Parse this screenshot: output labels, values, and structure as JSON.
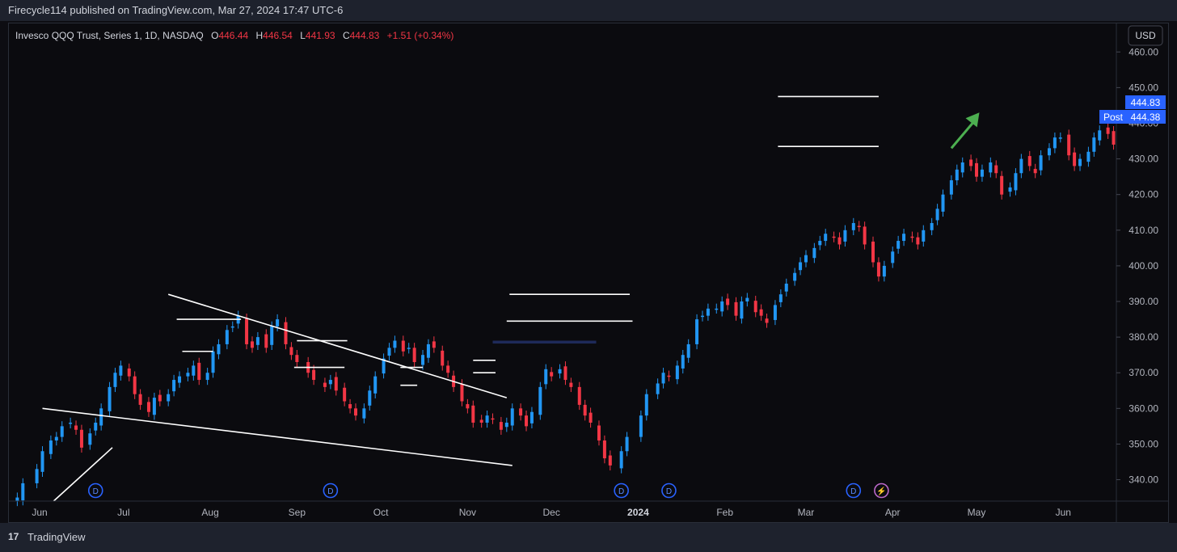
{
  "header": {
    "publish_line": "Firecycle114 published on TradingView.com, Mar 27, 2024 17:47 UTC-6"
  },
  "legend": {
    "symbol": "Invesco QQQ Trust, Series 1, 1D, NASDAQ",
    "o_label": "O",
    "o": "446.44",
    "h_label": "H",
    "h": "446.54",
    "l_label": "L",
    "l": "441.93",
    "c_label": "C",
    "c": "444.83",
    "change": "+1.51 (+0.34%)"
  },
  "currency": "USD",
  "price_tags": {
    "last": "444.83",
    "post_label": "Post",
    "post": "444.38"
  },
  "footer": {
    "logo_mark": "17",
    "brand": "TradingView"
  },
  "colors": {
    "up": "#2196f3",
    "down": "#f23645",
    "background": "#0b0b0f",
    "trendline": "#ffffff",
    "arrow": "#4caf50",
    "tag": "#2962ff"
  },
  "chart_data": {
    "type": "candlestick",
    "ylim": [
      334,
      468
    ],
    "y_ticks": [
      340,
      350,
      360,
      370,
      380,
      390,
      400,
      410,
      420,
      430,
      440,
      450,
      460
    ],
    "y_tick_labels": [
      "340.00",
      "350.00",
      "360.00",
      "370.00",
      "380.00",
      "390.00",
      "400.00",
      "410.00",
      "420.00",
      "430.00",
      "440.00",
      "450.00",
      "460.00"
    ],
    "x_range": [
      "2023-05-21",
      "2024-06-20"
    ],
    "x_ticks": [
      {
        "date": "2023-06-01",
        "label": "Jun",
        "bold": false
      },
      {
        "date": "2023-07-01",
        "label": "Jul",
        "bold": false
      },
      {
        "date": "2023-08-01",
        "label": "Aug",
        "bold": false
      },
      {
        "date": "2023-09-01",
        "label": "Sep",
        "bold": false
      },
      {
        "date": "2023-10-01",
        "label": "Oct",
        "bold": false
      },
      {
        "date": "2023-11-01",
        "label": "Nov",
        "bold": false
      },
      {
        "date": "2023-12-01",
        "label": "Dec",
        "bold": false
      },
      {
        "date": "2024-01-01",
        "label": "2024",
        "bold": true
      },
      {
        "date": "2024-02-01",
        "label": "Feb",
        "bold": false
      },
      {
        "date": "2024-03-01",
        "label": "Mar",
        "bold": false
      },
      {
        "date": "2024-04-01",
        "label": "Apr",
        "bold": false
      },
      {
        "date": "2024-05-01",
        "label": "May",
        "bold": false
      },
      {
        "date": "2024-06-01",
        "label": "Jun",
        "bold": false
      }
    ],
    "closes": [
      [
        "2023-05-24",
        335
      ],
      [
        "2023-05-26",
        339
      ],
      [
        "2023-05-31",
        343
      ],
      [
        "2023-06-02",
        348
      ],
      [
        "2023-06-05",
        351
      ],
      [
        "2023-06-07",
        352
      ],
      [
        "2023-06-09",
        355
      ],
      [
        "2023-06-12",
        356
      ],
      [
        "2023-06-14",
        354
      ],
      [
        "2023-06-16",
        349
      ],
      [
        "2023-06-19",
        353
      ],
      [
        "2023-06-21",
        356
      ],
      [
        "2023-06-23",
        360
      ],
      [
        "2023-06-26",
        366
      ],
      [
        "2023-06-28",
        370
      ],
      [
        "2023-06-30",
        372
      ],
      [
        "2023-07-03",
        369
      ],
      [
        "2023-07-05",
        364
      ],
      [
        "2023-07-07",
        361
      ],
      [
        "2023-07-10",
        359
      ],
      [
        "2023-07-12",
        363
      ],
      [
        "2023-07-14",
        362
      ],
      [
        "2023-07-17",
        364
      ],
      [
        "2023-07-19",
        368
      ],
      [
        "2023-07-21",
        369
      ],
      [
        "2023-07-24",
        370
      ],
      [
        "2023-07-26",
        372
      ],
      [
        "2023-07-28",
        368
      ],
      [
        "2023-07-31",
        370
      ],
      [
        "2023-08-02",
        376
      ],
      [
        "2023-08-04",
        378
      ],
      [
        "2023-08-07",
        382
      ],
      [
        "2023-08-09",
        383
      ],
      [
        "2023-08-11",
        386
      ],
      [
        "2023-08-14",
        378
      ],
      [
        "2023-08-16",
        377
      ],
      [
        "2023-08-18",
        380
      ],
      [
        "2023-08-21",
        377
      ],
      [
        "2023-08-23",
        383
      ],
      [
        "2023-08-25",
        385
      ],
      [
        "2023-08-28",
        378
      ],
      [
        "2023-08-30",
        375
      ],
      [
        "2023-09-01",
        373
      ],
      [
        "2023-09-05",
        370
      ],
      [
        "2023-09-07",
        368
      ],
      [
        "2023-09-11",
        366
      ],
      [
        "2023-09-13",
        368
      ],
      [
        "2023-09-15",
        365
      ],
      [
        "2023-09-18",
        362
      ],
      [
        "2023-09-20",
        360
      ],
      [
        "2023-09-22",
        358
      ],
      [
        "2023-09-25",
        360
      ],
      [
        "2023-09-27",
        365
      ],
      [
        "2023-09-29",
        369
      ],
      [
        "2023-10-02",
        374
      ],
      [
        "2023-10-04",
        377
      ],
      [
        "2023-10-06",
        379
      ],
      [
        "2023-10-09",
        376
      ],
      [
        "2023-10-11",
        377
      ],
      [
        "2023-10-13",
        373
      ],
      [
        "2023-10-16",
        375
      ],
      [
        "2023-10-18",
        378
      ],
      [
        "2023-10-20",
        377
      ],
      [
        "2023-10-23",
        372
      ],
      [
        "2023-10-25",
        370
      ],
      [
        "2023-10-27",
        366
      ],
      [
        "2023-10-30",
        362
      ],
      [
        "2023-11-01",
        360
      ],
      [
        "2023-11-03",
        356
      ],
      [
        "2023-11-06",
        356
      ],
      [
        "2023-11-08",
        358
      ],
      [
        "2023-11-10",
        357
      ],
      [
        "2023-11-13",
        354
      ],
      [
        "2023-11-15",
        356
      ],
      [
        "2023-11-17",
        360
      ],
      [
        "2023-11-20",
        358
      ],
      [
        "2023-11-22",
        355
      ],
      [
        "2023-11-24",
        359
      ],
      [
        "2023-11-27",
        366
      ],
      [
        "2023-11-29",
        371
      ],
      [
        "2023-12-01",
        369
      ],
      [
        "2023-12-04",
        371
      ],
      [
        "2023-12-06",
        368
      ],
      [
        "2023-12-08",
        366
      ],
      [
        "2023-12-11",
        361
      ],
      [
        "2023-12-13",
        358
      ],
      [
        "2023-12-15",
        356
      ],
      [
        "2023-12-18",
        351
      ],
      [
        "2023-12-20",
        346
      ],
      [
        "2023-12-22",
        344
      ],
      [
        "2023-12-26",
        348
      ],
      [
        "2023-12-28",
        352
      ],
      [
        "2024-01-02",
        358
      ],
      [
        "2024-01-04",
        364
      ],
      [
        "2024-01-08",
        367
      ],
      [
        "2024-01-10",
        370
      ],
      [
        "2024-01-12",
        369
      ],
      [
        "2024-01-15",
        372
      ],
      [
        "2024-01-17",
        375
      ],
      [
        "2024-01-19",
        378
      ],
      [
        "2024-01-22",
        385
      ],
      [
        "2024-01-24",
        386
      ],
      [
        "2024-01-26",
        388
      ],
      [
        "2024-01-29",
        388
      ],
      [
        "2024-01-31",
        390
      ],
      [
        "2024-02-02",
        389
      ],
      [
        "2024-02-05",
        386
      ],
      [
        "2024-02-07",
        390
      ],
      [
        "2024-02-09",
        391
      ],
      [
        "2024-02-12",
        387
      ],
      [
        "2024-02-14",
        386
      ],
      [
        "2024-02-16",
        384
      ],
      [
        "2024-02-19",
        389
      ],
      [
        "2024-02-21",
        392
      ],
      [
        "2024-02-23",
        395
      ],
      [
        "2024-02-26",
        398
      ],
      [
        "2024-02-28",
        401
      ],
      [
        "2024-03-01",
        403
      ],
      [
        "2024-03-04",
        405
      ],
      [
        "2024-03-06",
        407
      ],
      [
        "2024-03-08",
        409
      ],
      [
        "2024-03-11",
        408
      ],
      [
        "2024-03-13",
        406
      ],
      [
        "2024-03-15",
        410
      ],
      [
        "2024-03-18",
        412
      ],
      [
        "2024-03-20",
        411
      ],
      [
        "2024-03-22",
        406
      ],
      [
        "2024-03-25",
        401
      ],
      [
        "2024-03-27",
        397
      ],
      [
        "2024-03-29",
        400
      ],
      [
        "2024-04-01",
        404
      ],
      [
        "2024-04-03",
        407
      ],
      [
        "2024-04-05",
        409
      ],
      [
        "2024-04-08",
        408
      ],
      [
        "2024-04-10",
        406
      ],
      [
        "2024-04-12",
        410
      ],
      [
        "2024-04-15",
        412
      ],
      [
        "2024-04-17",
        416
      ],
      [
        "2024-04-19",
        420
      ],
      [
        "2024-04-22",
        424
      ],
      [
        "2024-04-24",
        427
      ],
      [
        "2024-04-26",
        429
      ],
      [
        "2024-04-29",
        428
      ],
      [
        "2024-05-01",
        425
      ],
      [
        "2024-05-03",
        427
      ],
      [
        "2024-05-06",
        429
      ],
      [
        "2024-05-08",
        426
      ],
      [
        "2024-05-10",
        420
      ],
      [
        "2024-05-13",
        422
      ],
      [
        "2024-05-15",
        426
      ],
      [
        "2024-05-17",
        430
      ],
      [
        "2024-05-20",
        428
      ],
      [
        "2024-05-22",
        426
      ],
      [
        "2024-05-24",
        431
      ],
      [
        "2024-05-27",
        433
      ],
      [
        "2024-05-29",
        436
      ],
      [
        "2024-05-31",
        436
      ],
      [
        "2024-06-03",
        431
      ],
      [
        "2024-06-05",
        428
      ],
      [
        "2024-06-07",
        430
      ],
      [
        "2024-06-10",
        432
      ],
      [
        "2024-06-12",
        436
      ],
      [
        "2024-06-14",
        438
      ],
      [
        "2024-06-17",
        437
      ],
      [
        "2024-06-19",
        434
      ]
    ],
    "annotations": {
      "trendlines": [
        {
          "from": [
            "2023-07-17",
            392
          ],
          "to": [
            "2023-11-15",
            363
          ]
        },
        {
          "from": [
            "2023-06-02",
            360
          ],
          "to": [
            "2023-11-17",
            344
          ]
        },
        {
          "from": [
            "2023-06-06",
            334
          ],
          "to": [
            "2023-06-27",
            349
          ]
        },
        {
          "from": [
            "2024-02-20",
            447.5
          ],
          "to": [
            "2024-03-27",
            447.5
          ]
        },
        {
          "from": [
            "2024-02-20",
            433.5
          ],
          "to": [
            "2024-03-27",
            433.5
          ]
        },
        {
          "from": [
            "2023-11-16",
            392
          ],
          "to": [
            "2023-12-29",
            392
          ]
        },
        {
          "from": [
            "2023-11-15",
            384.5
          ],
          "to": [
            "2023-12-30",
            384.5
          ]
        },
        {
          "from": [
            "2023-07-20",
            385
          ],
          "to": [
            "2023-08-12",
            385
          ]
        },
        {
          "from": [
            "2023-07-22",
            376
          ],
          "to": [
            "2023-08-02",
            376
          ]
        },
        {
          "from": [
            "2023-09-01",
            379
          ],
          "to": [
            "2023-09-19",
            379
          ]
        },
        {
          "from": [
            "2023-08-31",
            371.5
          ],
          "to": [
            "2023-09-18",
            371.5
          ]
        },
        {
          "from": [
            "2023-10-08",
            371.5
          ],
          "to": [
            "2023-10-16",
            371.5
          ]
        },
        {
          "from": [
            "2023-10-08",
            366.5
          ],
          "to": [
            "2023-10-14",
            366.5
          ]
        },
        {
          "from": [
            "2023-11-03",
            373.5
          ],
          "to": [
            "2023-11-11",
            373.5
          ]
        },
        {
          "from": [
            "2023-11-03",
            370
          ],
          "to": [
            "2023-11-11",
            370
          ]
        }
      ],
      "zone": {
        "from": [
          "2023-11-10",
          379
        ],
        "to": [
          "2023-12-17",
          378.2
        ]
      },
      "arrow": {
        "from": [
          "2024-04-22",
          433
        ],
        "to": [
          "2024-05-02",
          443
        ]
      },
      "event_markers": [
        {
          "date": "2023-06-21",
          "label": "D"
        },
        {
          "date": "2023-09-13",
          "label": "D"
        },
        {
          "date": "2023-12-26",
          "label": "D"
        },
        {
          "date": "2024-01-12",
          "label": "D"
        },
        {
          "date": "2024-03-18",
          "label": "D"
        },
        {
          "date": "2024-03-28",
          "label": "⚡"
        }
      ]
    }
  }
}
